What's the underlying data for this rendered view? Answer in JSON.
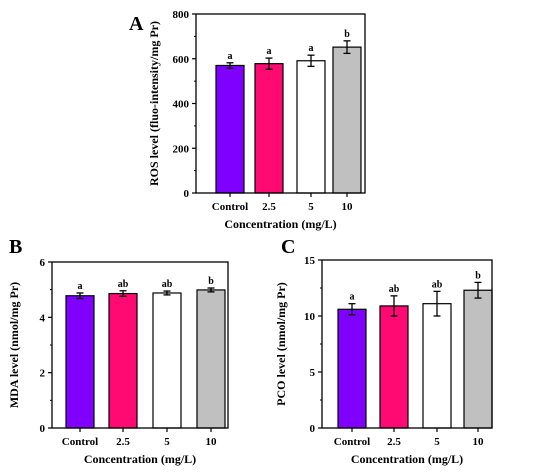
{
  "chart_data": [
    {
      "type": "bar",
      "panel_label": "A",
      "categories": [
        "Control",
        "2.5",
        "5",
        "10"
      ],
      "values": [
        570,
        578,
        591,
        652
      ],
      "errors": [
        12,
        25,
        25,
        28
      ],
      "significance": [
        "a",
        "a",
        "a",
        "b"
      ],
      "colors": [
        "#7f00ff",
        "#ff0a73",
        "#ffffff",
        "#c0c0c0"
      ],
      "xlabel": "Concentration (mg/L)",
      "ylabel": "ROS level (fluo-intensity/mg Pr)",
      "ylim": [
        0,
        800
      ],
      "yticks": [
        "0",
        "200",
        "400",
        "600",
        "800"
      ],
      "grid": false
    },
    {
      "type": "bar",
      "panel_label": "B",
      "categories": [
        "Control",
        "2.5",
        "5",
        "10"
      ],
      "values": [
        4.78,
        4.86,
        4.88,
        4.99
      ],
      "errors": [
        0.1,
        0.1,
        0.07,
        0.07
      ],
      "significance": [
        "a",
        "ab",
        "ab",
        "b"
      ],
      "colors": [
        "#7f00ff",
        "#ff0a73",
        "#ffffff",
        "#c0c0c0"
      ],
      "xlabel": "Concentration (mg/L)",
      "ylabel": "MDA level  (nmol/mg Pr)",
      "ylim": [
        0,
        6
      ],
      "yticks": [
        "0",
        "2",
        "4",
        "6"
      ],
      "grid": false
    },
    {
      "type": "bar",
      "panel_label": "C",
      "categories": [
        "Control",
        "2.5",
        "5",
        "10"
      ],
      "values": [
        10.6,
        10.9,
        11.1,
        12.3
      ],
      "errors": [
        0.5,
        0.9,
        1.1,
        0.7
      ],
      "significance": [
        "a",
        "ab",
        "ab",
        "b"
      ],
      "colors": [
        "#7f00ff",
        "#ff0a73",
        "#ffffff",
        "#c0c0c0"
      ],
      "xlabel": "Concentration (mg/L)",
      "ylabel": "PCO level  (nmol/mg Pr)",
      "ylim": [
        0,
        15
      ],
      "yticks": [
        "0",
        "5",
        "10",
        "15"
      ],
      "grid": false
    }
  ]
}
